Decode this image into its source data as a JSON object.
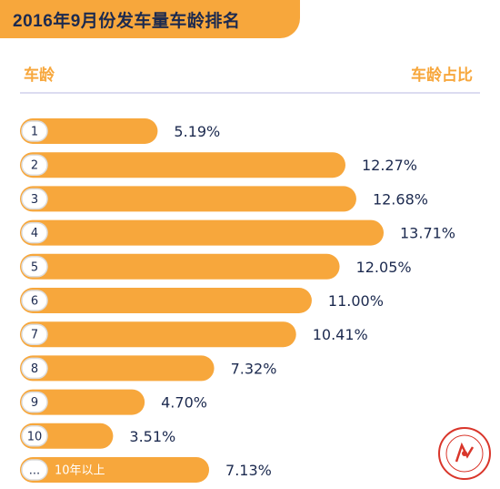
{
  "header": {
    "title": "2016年9月份发车量车龄排名",
    "left_label": "车龄",
    "right_label": "车龄占比"
  },
  "colors": {
    "accent": "#f7a73c",
    "text": "#1c2a4f",
    "badge_border": "#dcdcdc"
  },
  "chart_data": {
    "type": "bar",
    "orientation": "horizontal",
    "title": "2016年9月份发车量车龄排名",
    "xlabel": "车龄",
    "ylabel": "车龄占比",
    "categories": [
      "1",
      "2",
      "3",
      "4",
      "5",
      "6",
      "7",
      "8",
      "9",
      "10",
      "..."
    ],
    "category_suffix_last": "10年以上",
    "values": [
      5.19,
      12.27,
      12.68,
      13.71,
      12.05,
      11.0,
      10.41,
      7.32,
      4.7,
      3.51,
      7.13
    ],
    "value_labels": [
      "5.19%",
      "12.27%",
      "12.68%",
      "13.71%",
      "12.05%",
      "11.00%",
      "10.41%",
      "7.32%",
      "4.70%",
      "3.51%",
      "7.13%"
    ],
    "unit": "%",
    "grid": false,
    "legend": "none"
  }
}
